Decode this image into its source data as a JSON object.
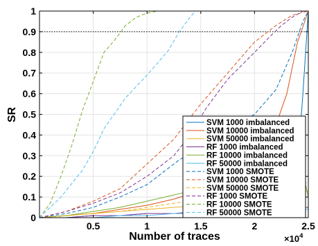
{
  "chart_data": {
    "type": "line",
    "xlabel": "Number of traces",
    "ylabel": "SR",
    "x_multiplier_label": "×10",
    "x_multiplier_exp": "4",
    "xlim": [
      0,
      25000
    ],
    "ylim": [
      0,
      1
    ],
    "x_tick_values": [
      5000,
      10000,
      15000,
      20000,
      25000
    ],
    "x_tick_labels": [
      "0.5",
      "1",
      "1.5",
      "2",
      "2.5"
    ],
    "y_tick_values": [
      0,
      0.1,
      0.2,
      0.3,
      0.4,
      0.5,
      0.6,
      0.7,
      0.8,
      0.9,
      1
    ],
    "y_tick_labels": [
      "0",
      "0.1",
      "0.2",
      "0.3",
      "0.4",
      "0.5",
      "0.6",
      "0.7",
      "0.8",
      "0.9",
      "1"
    ],
    "grid": true,
    "reference_line": {
      "y": 0.9,
      "style": "dotted"
    },
    "legend_position": "bottom-right",
    "series": [
      {
        "name": "SVM 1000 imbalanced",
        "color": "#0072BD",
        "dash": "solid",
        "x": [
          0,
          2500,
          5000,
          7500,
          10000,
          12500,
          15000,
          17500,
          20000,
          21500,
          22500,
          23500,
          24000,
          24500,
          25000
        ],
        "y": [
          0,
          0,
          0.01,
          0.01,
          0.02,
          0.02,
          0.03,
          0.03,
          0.05,
          0.07,
          0.09,
          0.12,
          0.25,
          0.6,
          1.0
        ]
      },
      {
        "name": "SVM 10000 imbalanced",
        "color": "#D95319",
        "dash": "solid",
        "x": [
          0,
          2500,
          5000,
          7500,
          10000,
          12500,
          15000,
          17500,
          20000,
          21000,
          22000,
          23000,
          24000,
          25000
        ],
        "y": [
          0,
          0.01,
          0.02,
          0.04,
          0.06,
          0.09,
          0.13,
          0.18,
          0.23,
          0.3,
          0.45,
          0.6,
          0.85,
          1.0
        ]
      },
      {
        "name": "SVM 50000 imbalanced",
        "color": "#EDB120",
        "dash": "solid",
        "x": [
          0,
          2500,
          5000,
          7500,
          10000,
          12500,
          15000,
          17500,
          20000,
          22500,
          25000
        ],
        "y": [
          0,
          0.01,
          0.02,
          0.03,
          0.04,
          0.05,
          0.06,
          0.08,
          0.1,
          0.12,
          0.13
        ]
      },
      {
        "name": "RF 1000 imbalanced",
        "color": "#7E2F8E",
        "dash": "solid",
        "x": [
          0,
          2500,
          5000,
          7500,
          10000,
          12500,
          15000,
          17500,
          20000,
          22500,
          25000
        ],
        "y": [
          0,
          0.0,
          0.01,
          0.01,
          0.02,
          0.02,
          0.03,
          0.03,
          0.04,
          0.05,
          0.05
        ]
      },
      {
        "name": "RF 10000 imbalanced",
        "color": "#77AC30",
        "dash": "solid",
        "x": [
          0,
          2500,
          5000,
          7500,
          10000,
          12500,
          15000,
          17500,
          20000,
          22500,
          24500,
          25000
        ],
        "y": [
          0,
          0.01,
          0.03,
          0.05,
          0.08,
          0.11,
          0.14,
          0.17,
          0.19,
          0.2,
          0.22,
          0.1
        ]
      },
      {
        "name": "RF 50000 imbalanced",
        "color": "#4DBEEE",
        "dash": "solid",
        "x": [
          0,
          2500,
          5000,
          7500,
          10000,
          12500,
          15000,
          17500,
          20000,
          22500,
          25000
        ],
        "y": [
          0,
          0.0,
          0.0,
          0.01,
          0.01,
          0.02,
          0.02,
          0.03,
          0.03,
          0.04,
          0.04
        ]
      },
      {
        "name": "SVM 1000 SMOTE",
        "color": "#0072BD",
        "dash": "dashed",
        "x": [
          0,
          2500,
          5000,
          7500,
          10000,
          11500,
          13000,
          15000,
          17500,
          20000,
          22000,
          23500,
          24500,
          25000
        ],
        "y": [
          0,
          0.02,
          0.05,
          0.1,
          0.16,
          0.22,
          0.28,
          0.34,
          0.42,
          0.5,
          0.62,
          0.8,
          0.95,
          1.0
        ]
      },
      {
        "name": "SVM 10000 SMOTE",
        "color": "#D95319",
        "dash": "dashed",
        "x": [
          0,
          2500,
          5000,
          7500,
          10000,
          12500,
          15000,
          17500,
          20000,
          22000,
          23500,
          25000
        ],
        "y": [
          0,
          0.03,
          0.08,
          0.14,
          0.26,
          0.38,
          0.55,
          0.7,
          0.85,
          0.93,
          0.98,
          1.0
        ]
      },
      {
        "name": "SVM 50000 SMOTE",
        "color": "#EDB120",
        "dash": "dashed",
        "x": [
          0,
          2500,
          5000,
          7500,
          10000,
          12500,
          15000,
          17500,
          20000,
          22500,
          25000
        ],
        "y": [
          0,
          0.01,
          0.02,
          0.03,
          0.05,
          0.07,
          0.09,
          0.11,
          0.13,
          0.15,
          0.17
        ]
      },
      {
        "name": "RF 1000 SMOTE",
        "color": "#7E2F8E",
        "dash": "dashed",
        "x": [
          0,
          2500,
          5000,
          7500,
          10000,
          12500,
          14000,
          15500,
          17500,
          20000,
          21500,
          22500,
          23500,
          24500,
          25000
        ],
        "y": [
          0,
          0.03,
          0.07,
          0.12,
          0.2,
          0.3,
          0.4,
          0.53,
          0.67,
          0.8,
          0.88,
          0.93,
          0.97,
          1.0,
          1.0
        ]
      },
      {
        "name": "RF 10000 SMOTE",
        "color": "#77AC30",
        "dash": "dashed",
        "x": [
          0,
          1000,
          2000,
          3000,
          4000,
          5000,
          6000,
          7000,
          8000,
          9000,
          10000,
          11000,
          25000
        ],
        "y": [
          0,
          0.07,
          0.2,
          0.35,
          0.52,
          0.66,
          0.8,
          0.86,
          0.93,
          0.97,
          0.99,
          1.0,
          1.0
        ]
      },
      {
        "name": "RF 50000 SMOTE",
        "color": "#4DBEEE",
        "dash": "dashed",
        "x": [
          0,
          2000,
          4000,
          5000,
          6000,
          8000,
          10000,
          12000,
          13000,
          14000,
          14500,
          25000
        ],
        "y": [
          0,
          0.1,
          0.23,
          0.32,
          0.43,
          0.58,
          0.69,
          0.81,
          0.9,
          0.97,
          1.0,
          1.0
        ]
      }
    ]
  }
}
